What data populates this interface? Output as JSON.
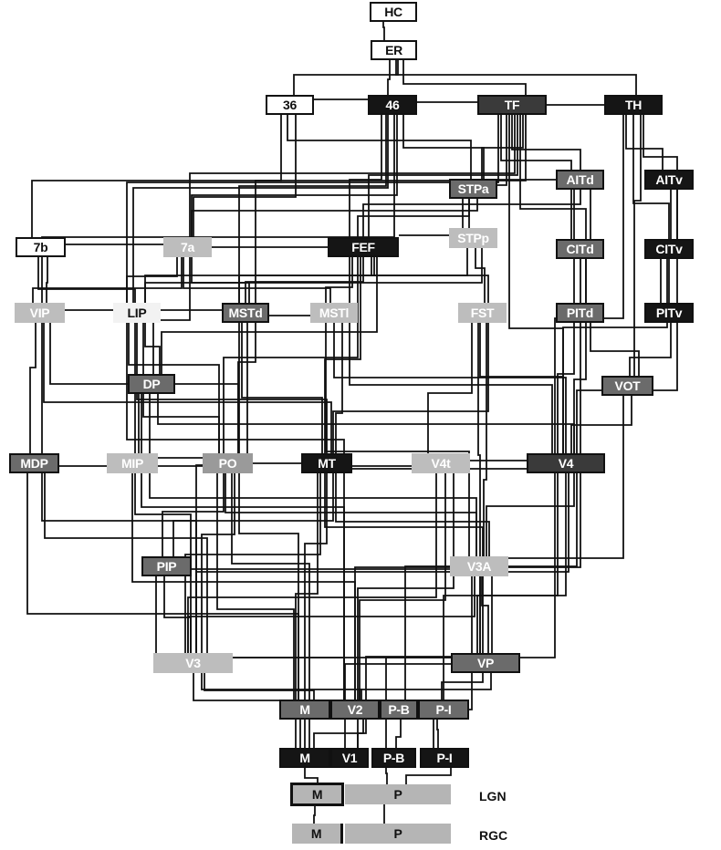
{
  "nodes": [
    {
      "id": "HC",
      "label": "HC",
      "shade": "white"
    },
    {
      "id": "ER",
      "label": "ER",
      "shade": "white"
    },
    {
      "id": "A36",
      "label": "36",
      "shade": "white"
    },
    {
      "id": "A46",
      "label": "46",
      "shade": "black"
    },
    {
      "id": "TF",
      "label": "TF",
      "shade": "dark"
    },
    {
      "id": "TH",
      "label": "TH",
      "shade": "black"
    },
    {
      "id": "STPa",
      "label": "STPa",
      "shade": "mid"
    },
    {
      "id": "AITd",
      "label": "AITd",
      "shade": "mid"
    },
    {
      "id": "AITv",
      "label": "AITv",
      "shade": "black"
    },
    {
      "id": "A7b",
      "label": "7b",
      "shade": "white"
    },
    {
      "id": "A7a",
      "label": "7a",
      "shade": "light"
    },
    {
      "id": "FEF",
      "label": "FEF",
      "shade": "black"
    },
    {
      "id": "STPp",
      "label": "STPp",
      "shade": "light"
    },
    {
      "id": "CITd",
      "label": "CITd",
      "shade": "mid"
    },
    {
      "id": "CITv",
      "label": "CITv",
      "shade": "black"
    },
    {
      "id": "VIP",
      "label": "VIP",
      "shade": "light"
    },
    {
      "id": "LIP",
      "label": "LIP",
      "shade": "pale"
    },
    {
      "id": "MSTd",
      "label": "MSTd",
      "shade": "mid"
    },
    {
      "id": "MSTl",
      "label": "MSTl",
      "shade": "light"
    },
    {
      "id": "FST",
      "label": "FST",
      "shade": "light"
    },
    {
      "id": "PITd",
      "label": "PITd",
      "shade": "mid"
    },
    {
      "id": "PITv",
      "label": "PITv",
      "shade": "black"
    },
    {
      "id": "DP",
      "label": "DP",
      "shade": "mid"
    },
    {
      "id": "VOT",
      "label": "VOT",
      "shade": "mid"
    },
    {
      "id": "MDP",
      "label": "MDP",
      "shade": "mid"
    },
    {
      "id": "MIP",
      "label": "MIP",
      "shade": "light"
    },
    {
      "id": "PO",
      "label": "PO",
      "shade": "gray"
    },
    {
      "id": "MT",
      "label": "MT",
      "shade": "black"
    },
    {
      "id": "V4t",
      "label": "V4t",
      "shade": "light"
    },
    {
      "id": "V4",
      "label": "V4",
      "shade": "dark"
    },
    {
      "id": "PIP",
      "label": "PIP",
      "shade": "mid"
    },
    {
      "id": "V3A",
      "label": "V3A",
      "shade": "light"
    },
    {
      "id": "V3",
      "label": "V3",
      "shade": "light"
    },
    {
      "id": "VP",
      "label": "VP",
      "shade": "mid"
    },
    {
      "id": "V2M",
      "label": "M",
      "shade": "mid"
    },
    {
      "id": "V2",
      "label": "V2",
      "shade": "mid"
    },
    {
      "id": "V2PB",
      "label": "P-B",
      "shade": "mid"
    },
    {
      "id": "V2PI",
      "label": "P-I",
      "shade": "mid"
    },
    {
      "id": "V1M",
      "label": "M",
      "shade": "black"
    },
    {
      "id": "V1",
      "label": "V1",
      "shade": "black"
    },
    {
      "id": "V1PB",
      "label": "P-B",
      "shade": "black"
    },
    {
      "id": "V1PI",
      "label": "P-I",
      "shade": "black"
    },
    {
      "id": "LGNM",
      "label": "M",
      "shade": "dot"
    },
    {
      "id": "LGNP",
      "label": "P",
      "shade": "dot"
    },
    {
      "id": "RGCM",
      "label": "M",
      "shade": "dot"
    },
    {
      "id": "RGCP",
      "label": "P",
      "shade": "dot"
    }
  ],
  "row_labels": {
    "lgn": "LGN",
    "rgc": "RGC"
  },
  "edges": [
    [
      "HC",
      "ER"
    ],
    [
      "ER",
      "A36"
    ],
    [
      "ER",
      "A46"
    ],
    [
      "ER",
      "TF"
    ],
    [
      "ER",
      "TH"
    ],
    [
      "A36",
      "A46"
    ],
    [
      "A46",
      "TF"
    ],
    [
      "TF",
      "TH"
    ],
    [
      "A36",
      "A7b"
    ],
    [
      "A36",
      "A7a"
    ],
    [
      "A36",
      "STPa"
    ],
    [
      "A46",
      "FEF"
    ],
    [
      "A46",
      "A7a"
    ],
    [
      "A46",
      "LIP"
    ],
    [
      "A46",
      "STPa"
    ],
    [
      "A46",
      "VIP"
    ],
    [
      "A46",
      "MSTd"
    ],
    [
      "TF",
      "STPa"
    ],
    [
      "TF",
      "AITd"
    ],
    [
      "TF",
      "CITd"
    ],
    [
      "TF",
      "PITd"
    ],
    [
      "TF",
      "V4"
    ],
    [
      "TF",
      "LIP"
    ],
    [
      "TF",
      "FEF"
    ],
    [
      "TF",
      "STPp"
    ],
    [
      "TF",
      "MSTd"
    ],
    [
      "TF",
      "A7a"
    ],
    [
      "TH",
      "AITv"
    ],
    [
      "TH",
      "CITv"
    ],
    [
      "TH",
      "PITv"
    ],
    [
      "TH",
      "V4"
    ],
    [
      "TH",
      "VOT"
    ],
    [
      "STPa",
      "AITd"
    ],
    [
      "STPa",
      "STPp"
    ],
    [
      "STPa",
      "A7a"
    ],
    [
      "STPa",
      "FEF"
    ],
    [
      "AITd",
      "CITd"
    ],
    [
      "AITv",
      "CITv"
    ],
    [
      "AITd",
      "PITd"
    ],
    [
      "AITv",
      "PITv"
    ],
    [
      "AITd",
      "FEF"
    ],
    [
      "A7b",
      "A7a"
    ],
    [
      "A7b",
      "VIP"
    ],
    [
      "A7b",
      "LIP"
    ],
    [
      "A7a",
      "LIP"
    ],
    [
      "A7a",
      "MSTd"
    ],
    [
      "A7a",
      "MSTl"
    ],
    [
      "A7a",
      "FEF"
    ],
    [
      "A7a",
      "DP"
    ],
    [
      "A7a",
      "VIP"
    ],
    [
      "FEF",
      "LIP"
    ],
    [
      "FEF",
      "MSTd"
    ],
    [
      "FEF",
      "MSTl"
    ],
    [
      "FEF",
      "FST"
    ],
    [
      "FEF",
      "MT"
    ],
    [
      "FEF",
      "V4"
    ],
    [
      "FEF",
      "STPp"
    ],
    [
      "FEF",
      "PO"
    ],
    [
      "FEF",
      "DP"
    ],
    [
      "STPp",
      "FST"
    ],
    [
      "STPp",
      "MSTd"
    ],
    [
      "STPp",
      "LIP"
    ],
    [
      "CITd",
      "PITd"
    ],
    [
      "CITv",
      "PITv"
    ],
    [
      "CITd",
      "V4"
    ],
    [
      "CITv",
      "V4"
    ],
    [
      "VIP",
      "LIP"
    ],
    [
      "VIP",
      "MT"
    ],
    [
      "VIP",
      "MDP"
    ],
    [
      "VIP",
      "PO"
    ],
    [
      "VIP",
      "V3"
    ],
    [
      "LIP",
      "MSTd"
    ],
    [
      "LIP",
      "DP"
    ],
    [
      "LIP",
      "MT"
    ],
    [
      "LIP",
      "PO"
    ],
    [
      "LIP",
      "MIP"
    ],
    [
      "LIP",
      "V3"
    ],
    [
      "LIP",
      "V2"
    ],
    [
      "MSTd",
      "MSTl"
    ],
    [
      "MSTd",
      "MT"
    ],
    [
      "MSTd",
      "PO"
    ],
    [
      "MSTd",
      "V3"
    ],
    [
      "MSTd",
      "V2M"
    ],
    [
      "MSTl",
      "MT"
    ],
    [
      "MSTl",
      "V4"
    ],
    [
      "MSTl",
      "V3A"
    ],
    [
      "FST",
      "MT"
    ],
    [
      "FST",
      "V4"
    ],
    [
      "FST",
      "V4t"
    ],
    [
      "FST",
      "V3A"
    ],
    [
      "FST",
      "VP"
    ],
    [
      "PITd",
      "VOT"
    ],
    [
      "PITv",
      "VOT"
    ],
    [
      "PITd",
      "V4"
    ],
    [
      "PITv",
      "V4"
    ],
    [
      "PITd",
      "V2"
    ],
    [
      "DP",
      "PO"
    ],
    [
      "DP",
      "V4"
    ],
    [
      "DP",
      "V3A"
    ],
    [
      "DP",
      "V2"
    ],
    [
      "VOT",
      "V4"
    ],
    [
      "VOT",
      "VP"
    ],
    [
      "MDP",
      "V3"
    ],
    [
      "MDP",
      "PO"
    ],
    [
      "MDP",
      "V2M"
    ],
    [
      "MIP",
      "PO"
    ],
    [
      "MIP",
      "V2"
    ],
    [
      "PO",
      "MT"
    ],
    [
      "PO",
      "V3"
    ],
    [
      "PO",
      "V3A"
    ],
    [
      "PO",
      "V2M"
    ],
    [
      "PO",
      "V1M"
    ],
    [
      "PO",
      "PIP"
    ],
    [
      "MT",
      "V4t"
    ],
    [
      "MT",
      "V4"
    ],
    [
      "MT",
      "V3"
    ],
    [
      "MT",
      "V3A"
    ],
    [
      "MT",
      "V2M"
    ],
    [
      "MT",
      "V1M"
    ],
    [
      "MT",
      "PIP"
    ],
    [
      "MT",
      "VP"
    ],
    [
      "V4t",
      "V4"
    ],
    [
      "V4t",
      "V2"
    ],
    [
      "V4t",
      "V3"
    ],
    [
      "V4t",
      "V1"
    ],
    [
      "V4",
      "V3"
    ],
    [
      "V4",
      "VP"
    ],
    [
      "V4",
      "V2PB"
    ],
    [
      "V4",
      "V2PI"
    ],
    [
      "V4",
      "V1PB"
    ],
    [
      "V4",
      "V3A"
    ],
    [
      "PIP",
      "V3"
    ],
    [
      "PIP",
      "V2"
    ],
    [
      "PIP",
      "V3A"
    ],
    [
      "V3A",
      "V3"
    ],
    [
      "V3A",
      "V2"
    ],
    [
      "V3A",
      "VP"
    ],
    [
      "V3A",
      "V1"
    ],
    [
      "V3",
      "V2M"
    ],
    [
      "V3",
      "V1M"
    ],
    [
      "V3",
      "VP"
    ],
    [
      "V3",
      "V2"
    ],
    [
      "VP",
      "V2PI"
    ],
    [
      "VP",
      "V1PI"
    ],
    [
      "VP",
      "V2"
    ],
    [
      "V2M",
      "V1M"
    ],
    [
      "V2",
      "V1"
    ],
    [
      "V2PB",
      "V1PB"
    ],
    [
      "V2PI",
      "V1PI"
    ],
    [
      "V2",
      "V1M"
    ],
    [
      "V1M",
      "LGNM"
    ],
    [
      "V1PB",
      "LGNP"
    ],
    [
      "V1PI",
      "LGNP"
    ],
    [
      "LGNM",
      "RGCM"
    ],
    [
      "LGNP",
      "RGCP"
    ]
  ]
}
